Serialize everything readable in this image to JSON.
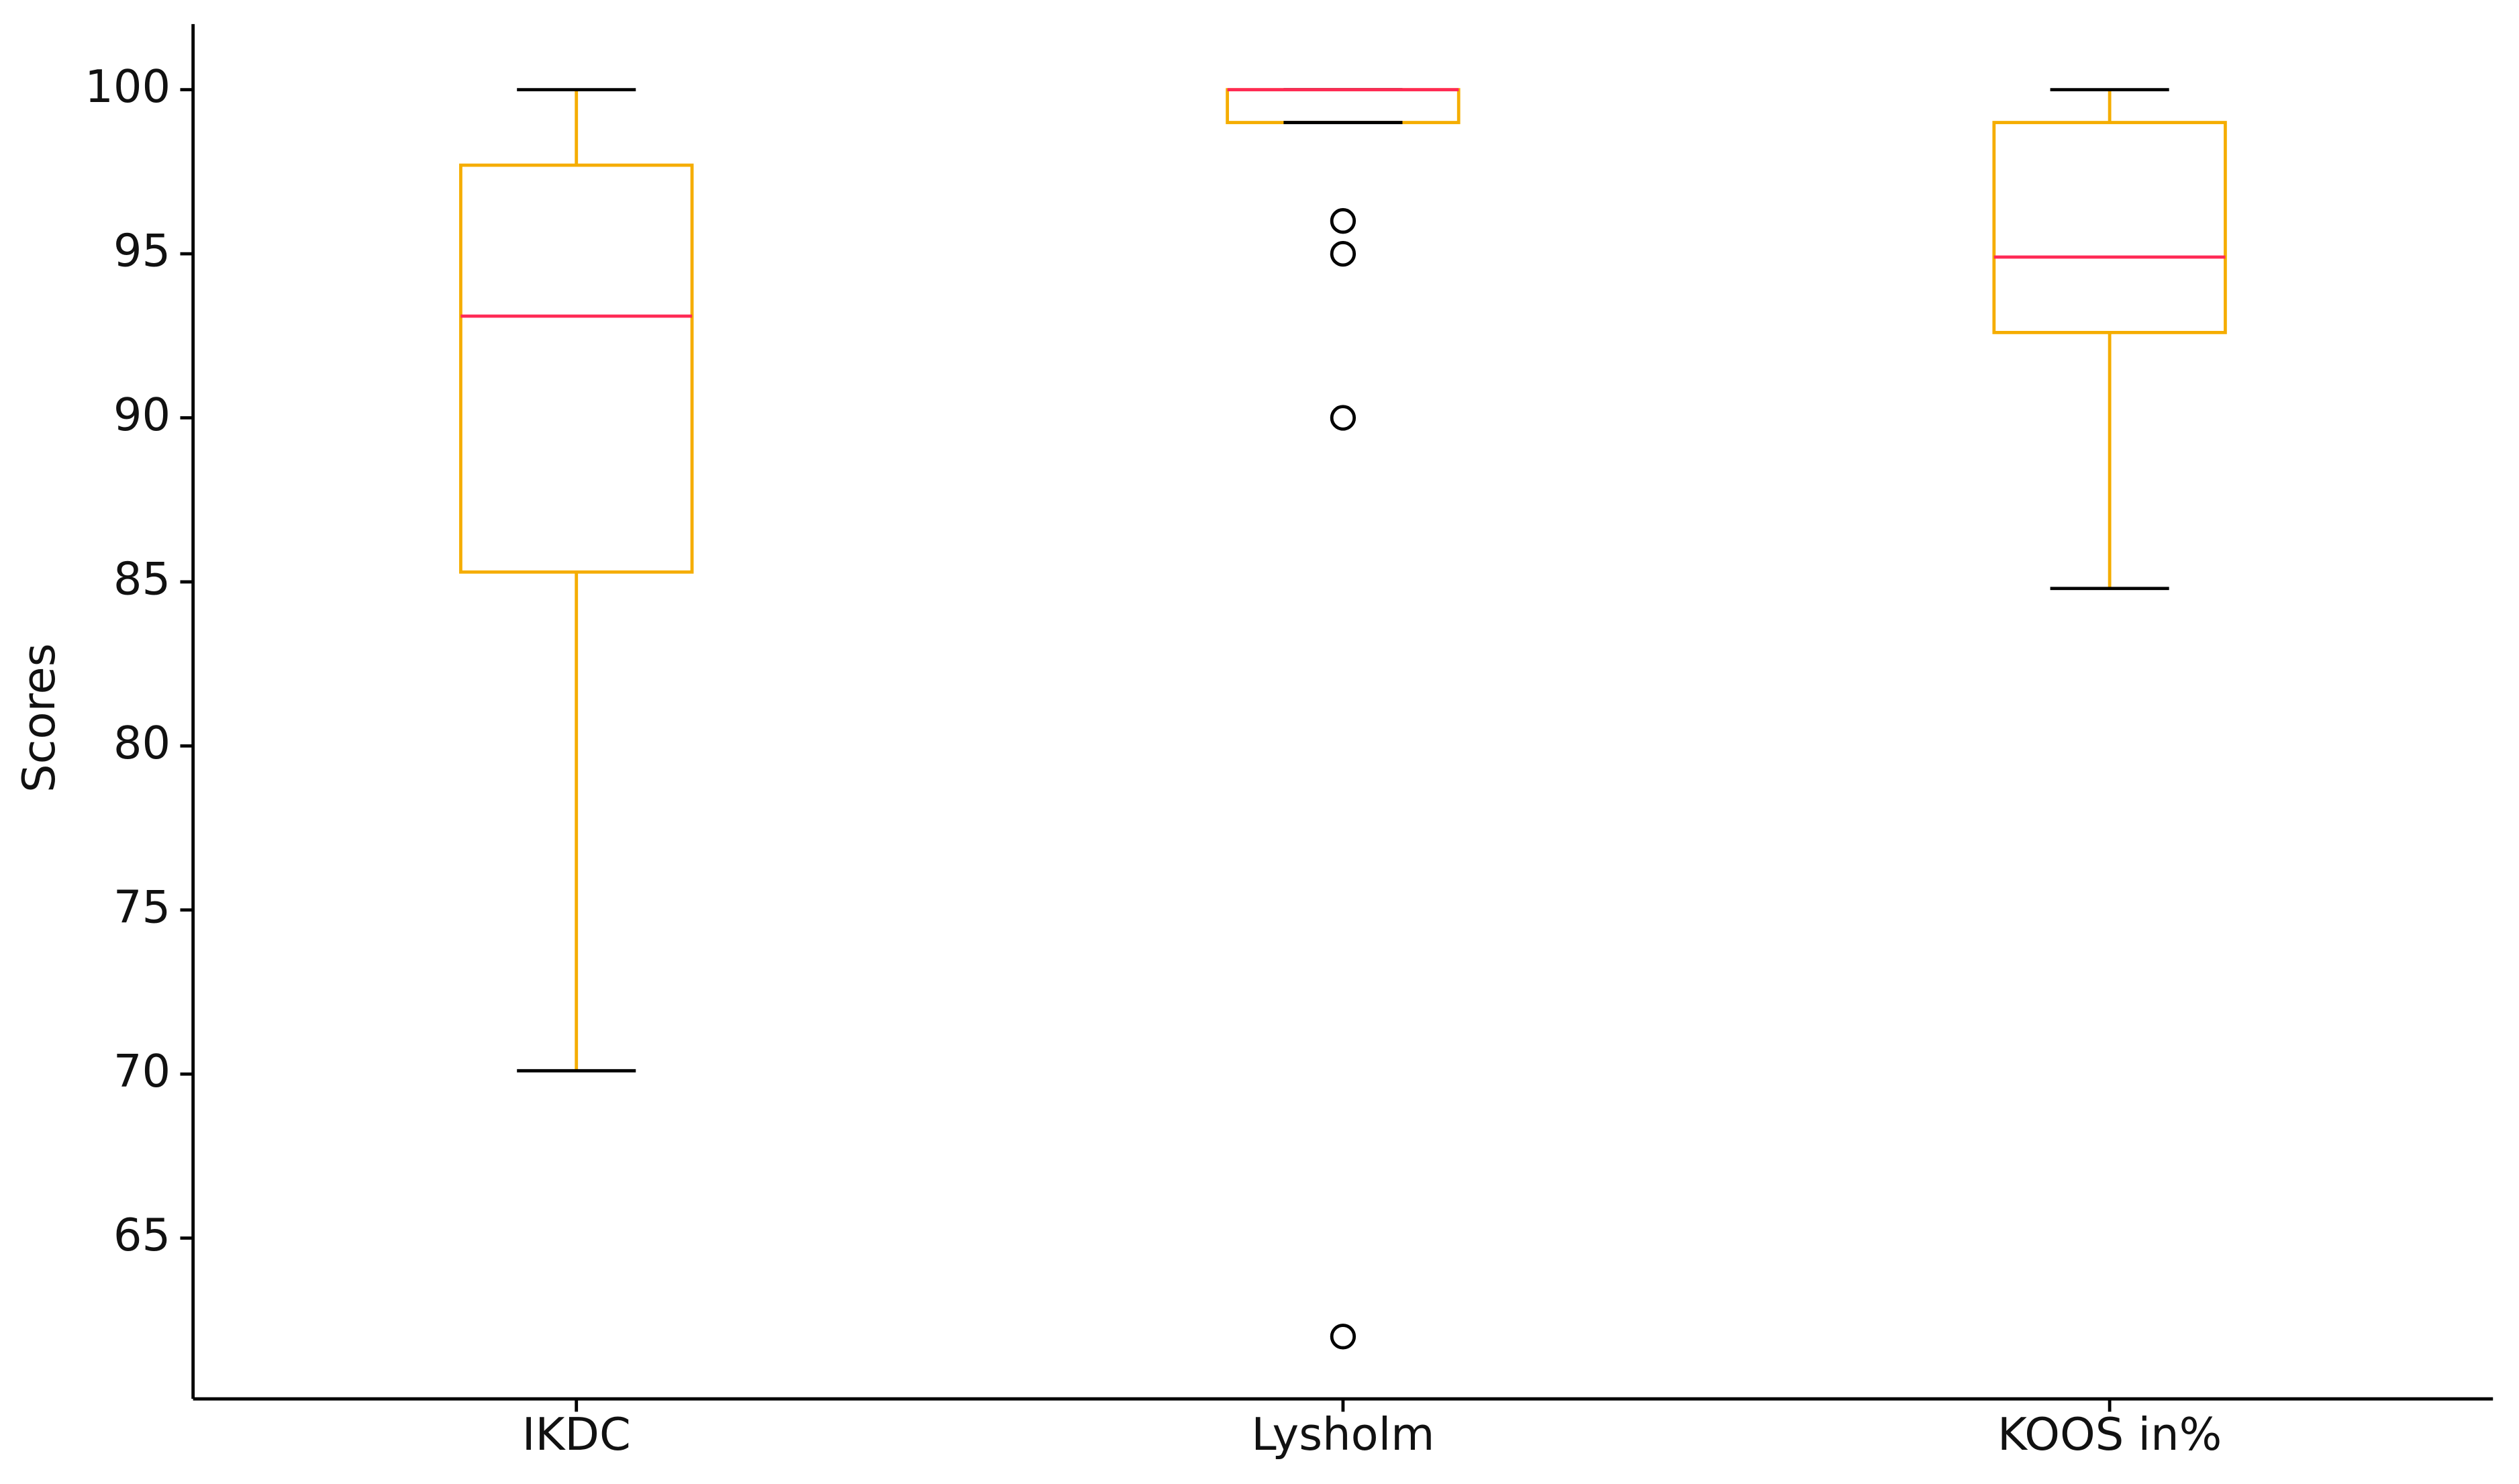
{
  "chart_data": {
    "type": "box",
    "ylabel": "Scores",
    "categories": [
      "IKDC",
      "Lysholm",
      "KOOS in%"
    ],
    "boxes": [
      {
        "whislo": 70.1,
        "q1": 85.3,
        "med": 93.1,
        "q3": 97.7,
        "whishi": 100,
        "fliers": []
      },
      {
        "whislo": 99,
        "q1": 99,
        "med": 100,
        "q3": 100,
        "whishi": 100,
        "fliers": [
          96,
          95,
          90,
          62
        ]
      },
      {
        "whislo": 84.8,
        "q1": 92.6,
        "med": 94.9,
        "q3": 99,
        "whishi": 100,
        "fliers": []
      }
    ],
    "box_color": "#f5ad00",
    "median_color": "#ff2a55",
    "cap_color": "#000000",
    "ylim": [
      60.1,
      102
    ],
    "yticks": [
      65,
      70,
      75,
      80,
      85,
      90,
      95,
      100
    ],
    "grid": false
  }
}
